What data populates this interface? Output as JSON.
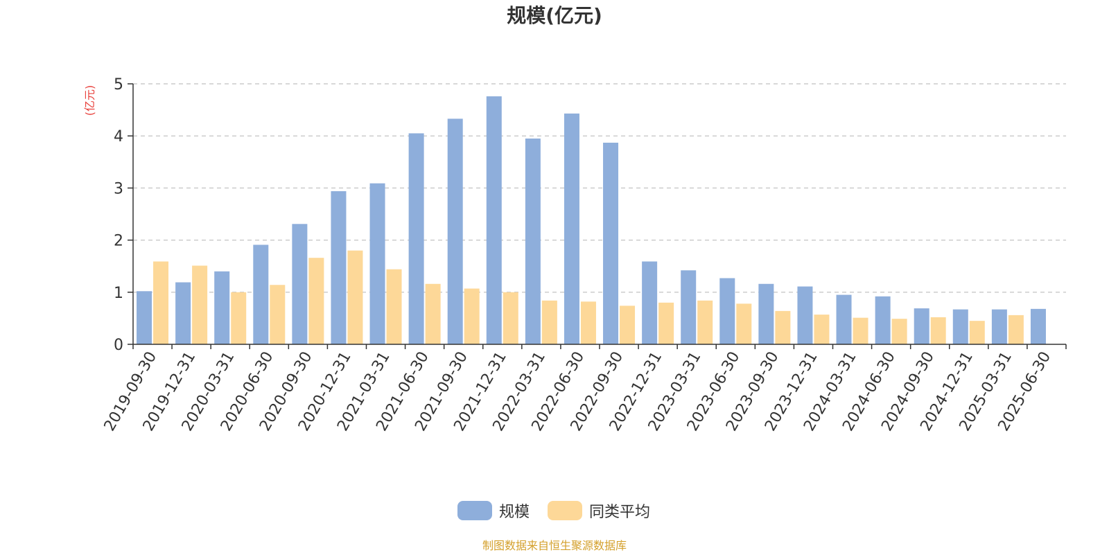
{
  "chart_data": {
    "type": "bar",
    "title": "规模(亿元)",
    "ylabel": "(亿元)",
    "ylim": [
      0,
      5
    ],
    "yticks": [
      "0",
      "1",
      "2",
      "3",
      "4",
      "5"
    ],
    "grid": true,
    "legend_position": "bottom-center",
    "categories": [
      "2019-09-30",
      "2019-12-31",
      "2020-03-31",
      "2020-06-30",
      "2020-09-30",
      "2020-12-31",
      "2021-03-31",
      "2021-06-30",
      "2021-09-30",
      "2021-12-31",
      "2022-03-31",
      "2022-06-30",
      "2022-09-30",
      "2022-12-31",
      "2023-03-31",
      "2023-06-30",
      "2023-09-30",
      "2023-12-31",
      "2024-03-31",
      "2024-06-30",
      "2024-09-30",
      "2024-12-31",
      "2025-03-31",
      "2025-06-30"
    ],
    "series": [
      {
        "name": "规模",
        "color": "#8eaedb",
        "values": [
          1.02,
          1.19,
          1.4,
          1.91,
          2.31,
          2.94,
          3.09,
          4.05,
          4.33,
          4.76,
          3.95,
          4.43,
          3.87,
          1.59,
          1.42,
          1.27,
          1.16,
          1.11,
          0.95,
          0.92,
          0.69,
          0.67,
          0.67,
          0.68
        ]
      },
      {
        "name": "同类平均",
        "color": "#fdd898",
        "values": [
          1.59,
          1.51,
          1.0,
          1.14,
          1.66,
          1.8,
          1.44,
          1.16,
          1.07,
          1.0,
          0.84,
          0.82,
          0.74,
          0.8,
          0.84,
          0.78,
          0.64,
          0.57,
          0.51,
          0.49,
          0.52,
          0.45,
          0.56,
          null
        ]
      }
    ]
  },
  "colors": {
    "title": "#333333",
    "unit": "#e8413c",
    "axis": "#333333",
    "grid": "#cccccc",
    "source": "#d4a02c"
  },
  "source_note": "制图数据来自恒生聚源数据库"
}
